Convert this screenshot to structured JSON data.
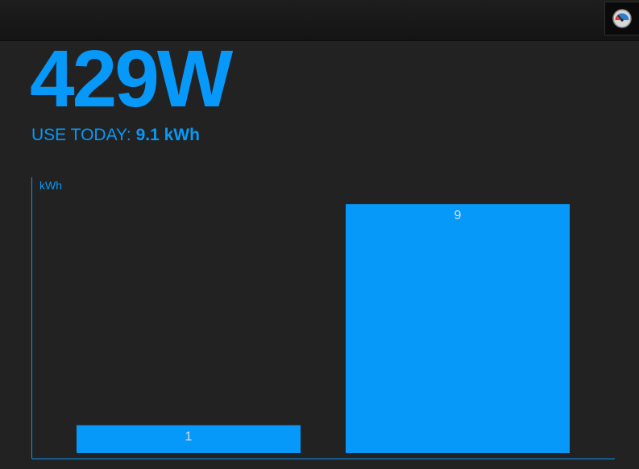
{
  "header": {
    "app_icon": "gauge-icon"
  },
  "power": {
    "value": "429",
    "unit": "W"
  },
  "today": {
    "label": "USE TODAY:",
    "value": "9.1 kWh"
  },
  "colors": {
    "accent": "#0699fa",
    "background": "#222222",
    "value_label": "#dcdcdc"
  },
  "chart_data": {
    "type": "bar",
    "categories": [
      "",
      ""
    ],
    "values": [
      1,
      9
    ],
    "ylabel": "kWh",
    "ylim": [
      0,
      10.2
    ],
    "grid": false
  }
}
